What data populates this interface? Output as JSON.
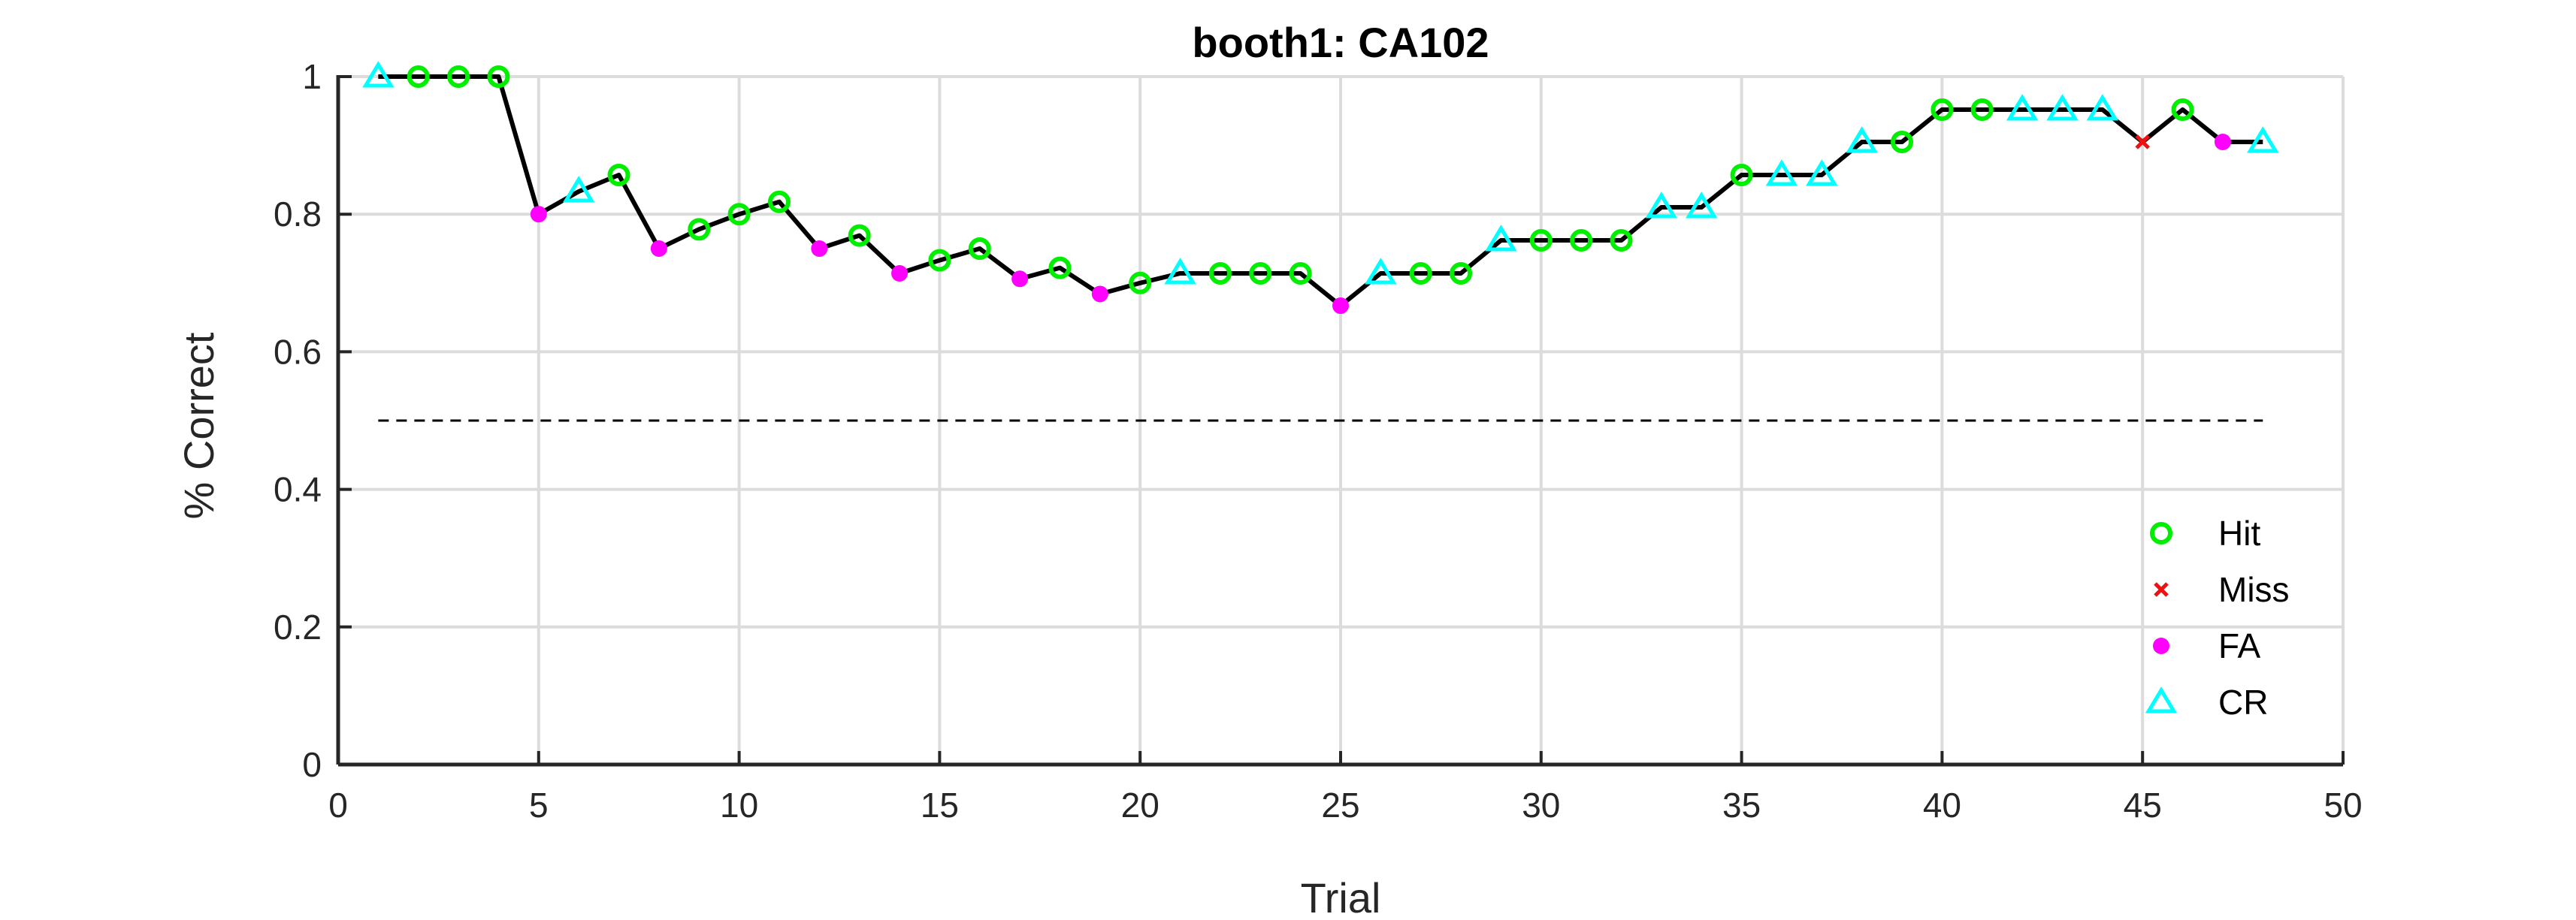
{
  "chart_data": {
    "type": "line",
    "title": "booth1: CA102",
    "xlabel": "Trial",
    "ylabel": "% Correct",
    "xlim": [
      0,
      50
    ],
    "ylim": [
      0,
      1
    ],
    "xticks": [
      0,
      5,
      10,
      15,
      20,
      25,
      30,
      35,
      40,
      45,
      50
    ],
    "yticks": [
      0,
      0.2,
      0.4,
      0.6,
      0.8,
      1
    ],
    "ytick_labels": [
      "0",
      "0.2",
      "0.4",
      "0.6",
      "0.8",
      "1"
    ],
    "grid": true,
    "legend_position": "bottom-right",
    "chance_line": {
      "y": 0.5,
      "x": [
        1,
        48
      ],
      "style": "dashed"
    },
    "line_color": "#000000",
    "series": [
      {
        "name": "Hit",
        "marker": "circle",
        "color": "#00ee00"
      },
      {
        "name": "Miss",
        "marker": "x",
        "color": "#ee1111"
      },
      {
        "name": "FA",
        "marker": "dot",
        "color": "#ff00ff"
      },
      {
        "name": "CR",
        "marker": "triangle",
        "color": "#00ffff"
      }
    ],
    "points": [
      {
        "x": 1,
        "y": 1.0,
        "outcome": "CR"
      },
      {
        "x": 2,
        "y": 1.0,
        "outcome": "Hit"
      },
      {
        "x": 3,
        "y": 1.0,
        "outcome": "Hit"
      },
      {
        "x": 4,
        "y": 1.0,
        "outcome": "Hit"
      },
      {
        "x": 5,
        "y": 0.8,
        "outcome": "FA"
      },
      {
        "x": 6,
        "y": 0.833,
        "outcome": "CR"
      },
      {
        "x": 7,
        "y": 0.857,
        "outcome": "Hit"
      },
      {
        "x": 8,
        "y": 0.75,
        "outcome": "FA"
      },
      {
        "x": 9,
        "y": 0.778,
        "outcome": "Hit"
      },
      {
        "x": 10,
        "y": 0.8,
        "outcome": "Hit"
      },
      {
        "x": 11,
        "y": 0.818,
        "outcome": "Hit"
      },
      {
        "x": 12,
        "y": 0.75,
        "outcome": "FA"
      },
      {
        "x": 13,
        "y": 0.769,
        "outcome": "Hit"
      },
      {
        "x": 14,
        "y": 0.714,
        "outcome": "FA"
      },
      {
        "x": 15,
        "y": 0.733,
        "outcome": "Hit"
      },
      {
        "x": 16,
        "y": 0.75,
        "outcome": "Hit"
      },
      {
        "x": 17,
        "y": 0.706,
        "outcome": "FA"
      },
      {
        "x": 18,
        "y": 0.722,
        "outcome": "Hit"
      },
      {
        "x": 19,
        "y": 0.684,
        "outcome": "FA"
      },
      {
        "x": 20,
        "y": 0.7,
        "outcome": "Hit"
      },
      {
        "x": 21,
        "y": 0.714,
        "outcome": "CR"
      },
      {
        "x": 22,
        "y": 0.714,
        "outcome": "Hit"
      },
      {
        "x": 23,
        "y": 0.714,
        "outcome": "Hit"
      },
      {
        "x": 24,
        "y": 0.714,
        "outcome": "Hit"
      },
      {
        "x": 25,
        "y": 0.667,
        "outcome": "FA"
      },
      {
        "x": 26,
        "y": 0.714,
        "outcome": "CR"
      },
      {
        "x": 27,
        "y": 0.714,
        "outcome": "Hit"
      },
      {
        "x": 28,
        "y": 0.714,
        "outcome": "Hit"
      },
      {
        "x": 29,
        "y": 0.762,
        "outcome": "CR"
      },
      {
        "x": 30,
        "y": 0.762,
        "outcome": "Hit"
      },
      {
        "x": 31,
        "y": 0.762,
        "outcome": "Hit"
      },
      {
        "x": 32,
        "y": 0.762,
        "outcome": "Hit"
      },
      {
        "x": 33,
        "y": 0.81,
        "outcome": "CR"
      },
      {
        "x": 34,
        "y": 0.81,
        "outcome": "CR"
      },
      {
        "x": 35,
        "y": 0.857,
        "outcome": "Hit"
      },
      {
        "x": 36,
        "y": 0.857,
        "outcome": "CR"
      },
      {
        "x": 37,
        "y": 0.857,
        "outcome": "CR"
      },
      {
        "x": 38,
        "y": 0.905,
        "outcome": "CR"
      },
      {
        "x": 39,
        "y": 0.905,
        "outcome": "Hit"
      },
      {
        "x": 40,
        "y": 0.952,
        "outcome": "Hit"
      },
      {
        "x": 41,
        "y": 0.952,
        "outcome": "Hit"
      },
      {
        "x": 42,
        "y": 0.952,
        "outcome": "CR"
      },
      {
        "x": 43,
        "y": 0.952,
        "outcome": "CR"
      },
      {
        "x": 44,
        "y": 0.952,
        "outcome": "CR"
      },
      {
        "x": 45,
        "y": 0.905,
        "outcome": "Miss"
      },
      {
        "x": 46,
        "y": 0.952,
        "outcome": "Hit"
      },
      {
        "x": 47,
        "y": 0.905,
        "outcome": "FA"
      },
      {
        "x": 48,
        "y": 0.905,
        "outcome": "CR"
      }
    ]
  }
}
